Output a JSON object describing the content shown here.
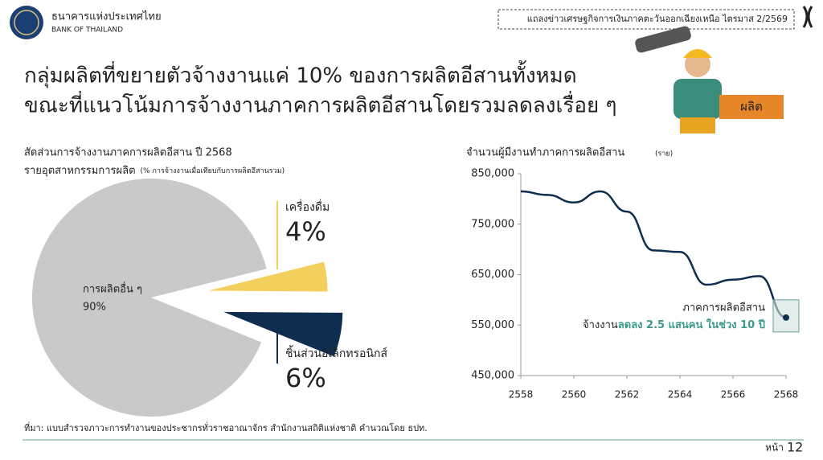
{
  "header": {
    "org_th": "ธนาคารแห่งประเทศไทย",
    "org_en": "BANK OF THAILAND",
    "event": "แถลงข่าวเศรษฐกิจการเงินภาคตะวันออกเฉียงเหนือ ไตรมาส 2/2569",
    "tag": "ผลิต"
  },
  "title": {
    "line1": "กลุ่มผลิตที่ขยายตัวจ้างงานแค่ 10% ของการผลิตอีสานทั้งหมด",
    "line2": "ขณะที่แนวโน้มการจ้างงานภาคการผลิตอีสานโดยรวมลดลงเรื่อย ๆ"
  },
  "chart_data": [
    {
      "type": "pie",
      "title": "สัดส่วนการจ้างงานภาคการผลิตอีสาน ปี 2568",
      "subtitle": "รายอุตสาหกรรมการผลิต",
      "note": "(% การจ้างงานเมื่อเทียบกับการผลิตอีสานรวม)",
      "categories": [
        "การผลิตอื่น ๆ",
        "เครื่องดื่ม",
        "ชิ้นส่วนอิเล็กทรอนิกส์"
      ],
      "values": [
        90,
        4,
        6
      ],
      "value_labels": [
        "90%",
        "4%",
        "6%"
      ],
      "colors": [
        "#c9c9c9",
        "#f3cf5e",
        "#0f2d4f"
      ]
    },
    {
      "type": "line",
      "title": "จำนวนผู้มีงานทำภาคการผลิตอีสาน",
      "unit": "(ราย)",
      "x": [
        2558,
        2559,
        2560,
        2561,
        2562,
        2563,
        2564,
        2565,
        2566,
        2567,
        2568
      ],
      "values": [
        815000,
        808000,
        793000,
        815000,
        775000,
        698000,
        695000,
        630000,
        640000,
        647000,
        565000
      ],
      "color": "#0f2d4f",
      "xlim": [
        2558,
        2568
      ],
      "xticks": [
        2558,
        2560,
        2562,
        2564,
        2566,
        2568
      ],
      "ylim": [
        450000,
        850000
      ],
      "yticks": [
        {
          "value": 450000,
          "label": "450,000"
        },
        {
          "value": 550000,
          "label": "550,000"
        },
        {
          "value": 650000,
          "label": "650,000"
        },
        {
          "value": 750000,
          "label": "750,000"
        },
        {
          "value": 850000,
          "label": "850,000"
        }
      ],
      "annotation": {
        "line1": "ภาคการผลิตอีสาน",
        "line2_prefix": "จ้างงาน",
        "line2_highlight": "ลดลง 2.5 แสนคน ในช่วง 10 ปี"
      }
    }
  ],
  "footer": {
    "source": "ที่มา: แบบสำรวจภาวะการทำงานของประชากรทั่วราชอาณาจักร สำนักงานสถิติแห่งชาติ คำนวณโดย ธปท.",
    "page_label": "หน้า",
    "page_number": "12"
  }
}
